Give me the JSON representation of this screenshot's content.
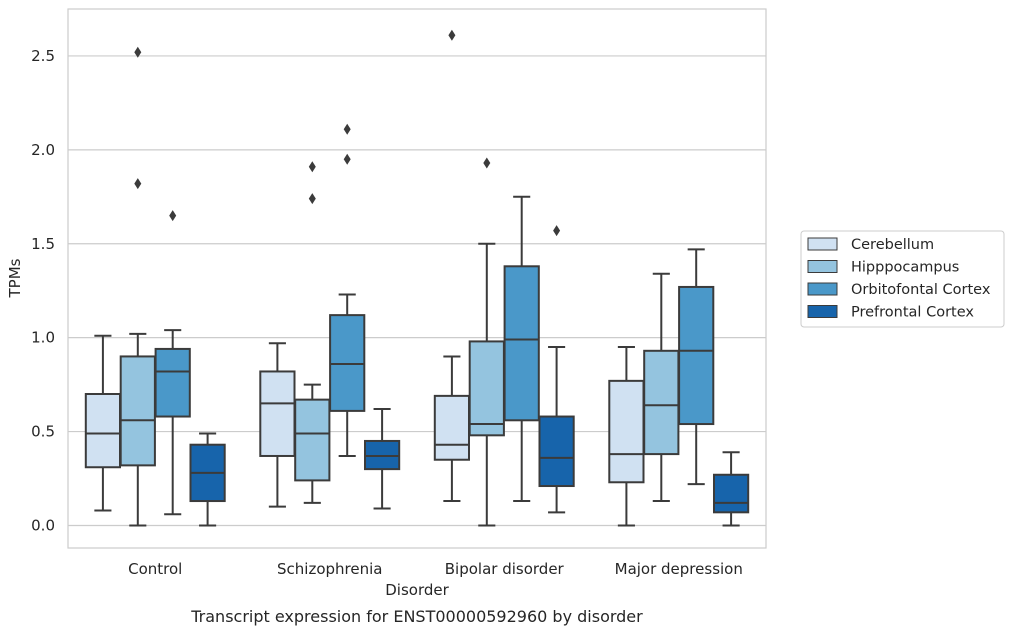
{
  "chart_data": {
    "type": "box",
    "xlabel": "Disorder",
    "ylabel": "TPMs",
    "caption": "Transcript expression for ENST00000592960 by disorder",
    "ylim": [
      -0.12,
      2.75
    ],
    "yticks": [
      "0.0",
      "0.5",
      "1.0",
      "1.5",
      "2.0",
      "2.5"
    ],
    "grid": true,
    "legend_position": "right",
    "categories": [
      "Control",
      "Schizophrenia",
      "Bipolar disorder",
      "Major depression"
    ],
    "series": [
      {
        "name": "Cerebellum",
        "color": "#d0e1f2",
        "boxes": [
          {
            "min": 0.08,
            "q1": 0.31,
            "median": 0.49,
            "q3": 0.7,
            "max": 1.01,
            "outliers": []
          },
          {
            "min": 0.1,
            "q1": 0.37,
            "median": 0.65,
            "q3": 0.82,
            "max": 0.97,
            "outliers": []
          },
          {
            "min": 0.13,
            "q1": 0.35,
            "median": 0.43,
            "q3": 0.69,
            "max": 0.9,
            "outliers": [
              2.61
            ]
          },
          {
            "min": 0.0,
            "q1": 0.23,
            "median": 0.38,
            "q3": 0.77,
            "max": 0.95,
            "outliers": []
          }
        ]
      },
      {
        "name": "Hipppocampus",
        "color": "#94c4df",
        "boxes": [
          {
            "min": 0.0,
            "q1": 0.32,
            "median": 0.56,
            "q3": 0.9,
            "max": 1.02,
            "outliers": [
              2.52,
              1.82
            ]
          },
          {
            "min": 0.12,
            "q1": 0.24,
            "median": 0.49,
            "q3": 0.67,
            "max": 0.75,
            "outliers": [
              1.91,
              1.74
            ]
          },
          {
            "min": 0.0,
            "q1": 0.48,
            "median": 0.54,
            "q3": 0.98,
            "max": 1.5,
            "outliers": [
              1.93
            ]
          },
          {
            "min": 0.13,
            "q1": 0.38,
            "median": 0.64,
            "q3": 0.93,
            "max": 1.34,
            "outliers": []
          }
        ]
      },
      {
        "name": "Orbitofontal Cortex",
        "color": "#4a98c9",
        "boxes": [
          {
            "min": 0.06,
            "q1": 0.58,
            "median": 0.82,
            "q3": 0.94,
            "max": 1.04,
            "outliers": [
              1.65
            ]
          },
          {
            "min": 0.37,
            "q1": 0.61,
            "median": 0.86,
            "q3": 1.12,
            "max": 1.23,
            "outliers": [
              2.11,
              1.95
            ]
          },
          {
            "min": 0.13,
            "q1": 0.56,
            "median": 0.99,
            "q3": 1.38,
            "max": 1.75,
            "outliers": []
          },
          {
            "min": 0.22,
            "q1": 0.54,
            "median": 0.93,
            "q3": 1.27,
            "max": 1.47,
            "outliers": []
          }
        ]
      },
      {
        "name": "Prefrontal Cortex",
        "color": "#1764ab",
        "boxes": [
          {
            "min": 0.0,
            "q1": 0.13,
            "median": 0.28,
            "q3": 0.43,
            "max": 0.49,
            "outliers": []
          },
          {
            "min": 0.09,
            "q1": 0.3,
            "median": 0.37,
            "q3": 0.45,
            "max": 0.62,
            "outliers": []
          },
          {
            "min": 0.07,
            "q1": 0.21,
            "median": 0.36,
            "q3": 0.58,
            "max": 0.95,
            "outliers": [
              1.57
            ]
          },
          {
            "min": 0.0,
            "q1": 0.07,
            "median": 0.12,
            "q3": 0.27,
            "max": 0.39,
            "outliers": []
          }
        ]
      }
    ]
  }
}
